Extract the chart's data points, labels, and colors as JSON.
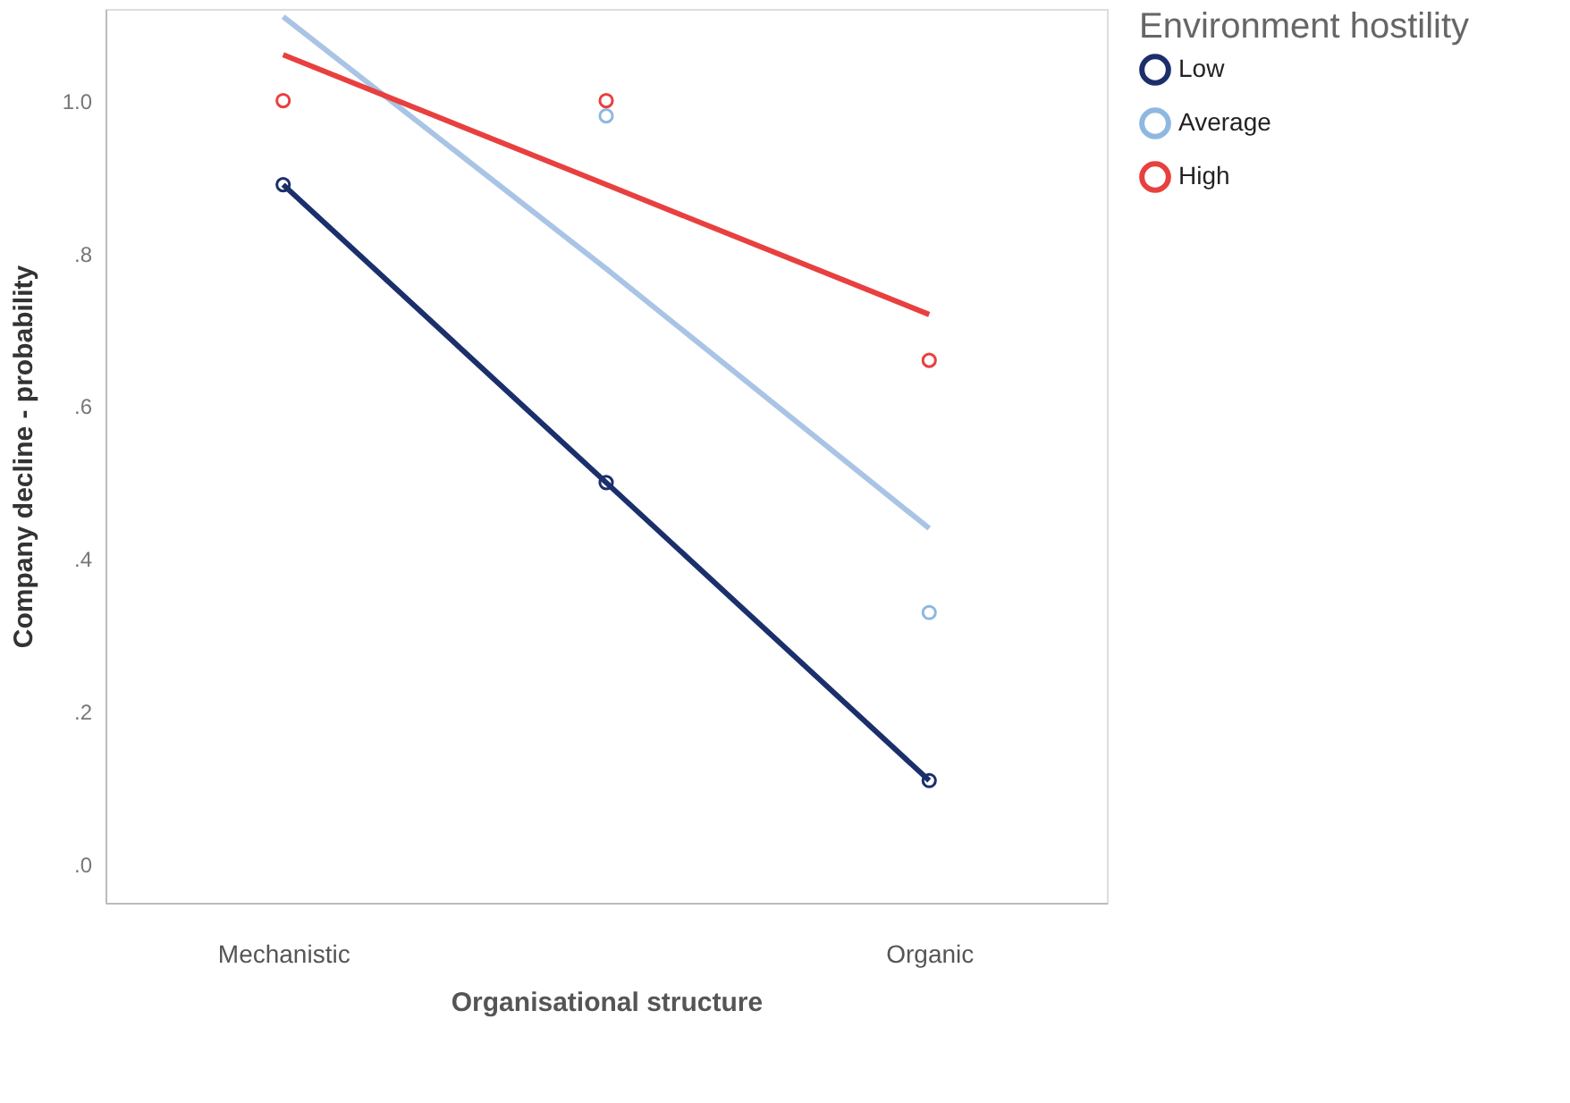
{
  "chart_data": {
    "type": "scatter",
    "xlabel": "Organisational structure",
    "ylabel": "Company decline - probability",
    "legend_title": "Environment hostility",
    "categories": [
      "Mechanistic",
      null,
      "Organic"
    ],
    "ylim": [
      -0.05,
      1.12
    ],
    "yticks": [
      {
        "value": 0,
        "label": ".0"
      },
      {
        "value": 0.2,
        "label": ".2"
      },
      {
        "value": 0.4,
        "label": ".4"
      },
      {
        "value": 0.6,
        "label": ".6"
      },
      {
        "value": 0.8,
        "label": ".8"
      },
      {
        "value": 1.0,
        "label": "1.0"
      }
    ],
    "grid": false,
    "legend": "right",
    "line_style": "solid",
    "series": [
      {
        "name": "Low",
        "color": "#1b2f6b",
        "marker": "circle",
        "values": [
          0.89,
          0.5,
          0.11
        ]
      },
      {
        "name": "Average",
        "color": "#8fb8e0",
        "marker": "circle",
        "values": [
          null,
          0.98,
          0.33
        ]
      },
      {
        "name": "High",
        "color": "#e8403f",
        "marker": "circle",
        "values": [
          1.0,
          1.0,
          0.66
        ]
      },
      {
        "color": "#1b2f6b",
        "type": "line",
        "marker": "none",
        "values": [
          0.89,
          0.5,
          0.11
        ]
      },
      {
        "color": "#a9c4e4",
        "type": "line",
        "marker": "none",
        "values": [
          1.11,
          0.78,
          0.44
        ]
      },
      {
        "color": "#e8403f",
        "type": "line",
        "marker": "none",
        "values": [
          1.06,
          0.89,
          0.72
        ]
      }
    ]
  }
}
